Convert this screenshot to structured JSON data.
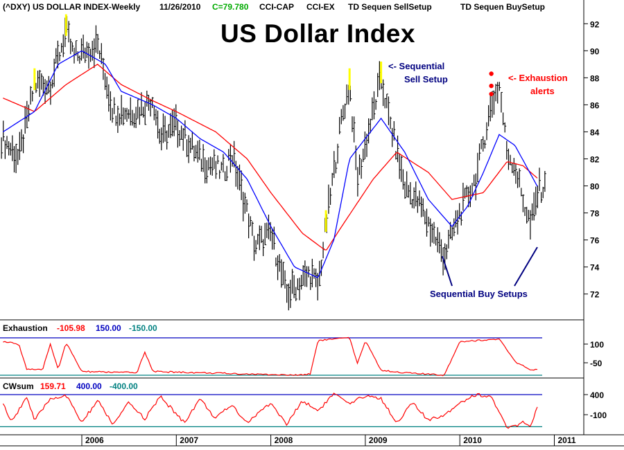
{
  "header": {
    "symbol": "(^DXY) US DOLLAR INDEX-Weekly",
    "date": "11/26/2010",
    "close": "C=79.780",
    "ind1": "CCI-CAP",
    "ind2": "CCI-EX",
    "ind3": "TD Sequen SellSetup",
    "ind4": "TD Sequen BuySetup"
  },
  "colors": {
    "price_bar": "#000000",
    "ma_short": "#0000ff",
    "ma_long": "#ff0000",
    "setup_highlight": "#ffff00",
    "alert_dot": "#ff0000",
    "level_line_upper": "#0000c0",
    "level_line_lower": "#008080",
    "annotation_blue": "#000080",
    "annotation_red": "#ff0000",
    "close_value": "#00aa00"
  },
  "annotations": {
    "title": "US Dollar Index",
    "sell_setup_line1": "<- Sequential",
    "sell_setup_line2": "Sell Setup",
    "exhaustion_line1": "<- Exhaustion",
    "exhaustion_line2": "alerts",
    "buy_setups": "Sequential Buy Setups"
  },
  "panels": {
    "exhaustion": {
      "name": "Exhaustion",
      "value": "-105.98",
      "upper": "150.00",
      "lower": "-150.00"
    },
    "cwsum": {
      "name": "CWsum",
      "value": "159.71",
      "upper": "400.00",
      "lower": "-400.00"
    }
  },
  "chart_data": [
    {
      "type": "ohlc",
      "title": "US Dollar Index",
      "ylim": [
        70.5,
        93.5
      ],
      "y_ticks": [
        "92",
        "90",
        "88",
        "86",
        "84",
        "82",
        "80",
        "78",
        "76",
        "74",
        "72"
      ],
      "x_ticks": [
        "2006",
        "2007",
        "2008",
        "2009",
        "2010",
        "2011"
      ],
      "price_anchors": [
        {
          "date": "2005-03",
          "value": 83.5
        },
        {
          "date": "2005-05",
          "value": 82.0
        },
        {
          "date": "2005-07",
          "value": 87.5
        },
        {
          "date": "2005-09",
          "value": 87.5
        },
        {
          "date": "2005-11",
          "value": 91.5
        },
        {
          "date": "2005-12",
          "value": 89.5
        },
        {
          "date": "2006-03",
          "value": 90.5
        },
        {
          "date": "2006-05",
          "value": 85.5
        },
        {
          "date": "2006-08",
          "value": 85.5
        },
        {
          "date": "2006-10",
          "value": 86.5
        },
        {
          "date": "2006-11",
          "value": 83.5
        },
        {
          "date": "2007-01",
          "value": 84.5
        },
        {
          "date": "2007-04",
          "value": 82.0
        },
        {
          "date": "2007-07",
          "value": 81.0
        },
        {
          "date": "2007-08",
          "value": 82.5
        },
        {
          "date": "2007-10",
          "value": 78.0
        },
        {
          "date": "2007-11",
          "value": 75.5
        },
        {
          "date": "2008-01",
          "value": 76.5
        },
        {
          "date": "2008-03",
          "value": 72.0
        },
        {
          "date": "2008-04",
          "value": 72.5
        },
        {
          "date": "2008-06",
          "value": 73.5
        },
        {
          "date": "2008-07",
          "value": 72.5
        },
        {
          "date": "2008-08",
          "value": 77.0
        },
        {
          "date": "2008-10",
          "value": 85.0
        },
        {
          "date": "2008-11",
          "value": 87.5
        },
        {
          "date": "2008-12",
          "value": 80.5
        },
        {
          "date": "2009-03",
          "value": 88.0
        },
        {
          "date": "2009-04",
          "value": 85.0
        },
        {
          "date": "2009-06",
          "value": 80.0
        },
        {
          "date": "2009-08",
          "value": 78.5
        },
        {
          "date": "2009-10",
          "value": 76.0
        },
        {
          "date": "2009-11",
          "value": 74.8
        },
        {
          "date": "2010-01",
          "value": 78.0
        },
        {
          "date": "2010-03",
          "value": 80.5
        },
        {
          "date": "2010-05",
          "value": 86.0
        },
        {
          "date": "2010-06",
          "value": 87.5
        },
        {
          "date": "2010-07",
          "value": 82.5
        },
        {
          "date": "2010-08",
          "value": 81.5
        },
        {
          "date": "2010-09",
          "value": 79.0
        },
        {
          "date": "2010-10",
          "value": 77.0
        },
        {
          "date": "2010-11",
          "value": 79.8
        }
      ],
      "ma_short": [
        {
          "date": "2005-03",
          "value": 84.0
        },
        {
          "date": "2005-07",
          "value": 85.5
        },
        {
          "date": "2005-10",
          "value": 89.0
        },
        {
          "date": "2006-01",
          "value": 90.0
        },
        {
          "date": "2006-04",
          "value": 89.0
        },
        {
          "date": "2006-06",
          "value": 87.0
        },
        {
          "date": "2006-10",
          "value": 86.0
        },
        {
          "date": "2007-01",
          "value": 85.0
        },
        {
          "date": "2007-04",
          "value": 83.5
        },
        {
          "date": "2007-07",
          "value": 82.5
        },
        {
          "date": "2007-10",
          "value": 80.5
        },
        {
          "date": "2008-01",
          "value": 77.0
        },
        {
          "date": "2008-04",
          "value": 74.0
        },
        {
          "date": "2008-07",
          "value": 73.2
        },
        {
          "date": "2008-09",
          "value": 76.0
        },
        {
          "date": "2008-11",
          "value": 82.0
        },
        {
          "date": "2009-01",
          "value": 83.5
        },
        {
          "date": "2009-03",
          "value": 85.0
        },
        {
          "date": "2009-06",
          "value": 82.5
        },
        {
          "date": "2009-09",
          "value": 79.0
        },
        {
          "date": "2009-12",
          "value": 77.0
        },
        {
          "date": "2010-02",
          "value": 78.5
        },
        {
          "date": "2010-04",
          "value": 81.0
        },
        {
          "date": "2010-06",
          "value": 83.8
        },
        {
          "date": "2010-08",
          "value": 83.0
        },
        {
          "date": "2010-11",
          "value": 79.8
        }
      ],
      "ma_long": [
        {
          "date": "2005-03",
          "value": 86.5
        },
        {
          "date": "2005-07",
          "value": 85.5
        },
        {
          "date": "2005-11",
          "value": 87.5
        },
        {
          "date": "2006-03",
          "value": 89.0
        },
        {
          "date": "2006-06",
          "value": 87.5
        },
        {
          "date": "2006-10",
          "value": 86.3
        },
        {
          "date": "2007-01",
          "value": 85.5
        },
        {
          "date": "2007-06",
          "value": 84.0
        },
        {
          "date": "2007-10",
          "value": 82.0
        },
        {
          "date": "2008-01",
          "value": 79.5
        },
        {
          "date": "2008-05",
          "value": 76.5
        },
        {
          "date": "2008-08",
          "value": 75.2
        },
        {
          "date": "2008-10",
          "value": 77.0
        },
        {
          "date": "2009-02",
          "value": 80.5
        },
        {
          "date": "2009-05",
          "value": 82.5
        },
        {
          "date": "2009-09",
          "value": 81.0
        },
        {
          "date": "2009-12",
          "value": 79.0
        },
        {
          "date": "2010-04",
          "value": 79.5
        },
        {
          "date": "2010-07",
          "value": 81.8
        },
        {
          "date": "2010-09",
          "value": 81.5
        },
        {
          "date": "2010-11",
          "value": 80.5
        }
      ],
      "sell_setups": [
        "2005-07",
        "2005-11",
        "2008-08",
        "2008-11",
        "2009-03"
      ],
      "exhaustion_alerts": [
        {
          "date": "2010-05",
          "value": 88.3
        },
        {
          "date": "2010-05",
          "value": 87.4
        },
        {
          "date": "2010-05",
          "value": 86.8
        }
      ]
    },
    {
      "type": "line",
      "name": "Exhaustion",
      "ylim": [
        -200,
        200
      ],
      "y_ticks": [
        "100",
        "-50"
      ],
      "levels": [
        150,
        -150
      ],
      "values": [
        {
          "date": "2005-03",
          "value": 120
        },
        {
          "date": "2005-05",
          "value": 100
        },
        {
          "date": "2005-06",
          "value": -100
        },
        {
          "date": "2005-08",
          "value": -110
        },
        {
          "date": "2005-09",
          "value": 100
        },
        {
          "date": "2005-10",
          "value": -100
        },
        {
          "date": "2005-11",
          "value": 110
        },
        {
          "date": "2006-01",
          "value": -120
        },
        {
          "date": "2006-08",
          "value": -130
        },
        {
          "date": "2006-09",
          "value": 40
        },
        {
          "date": "2006-10",
          "value": -120
        },
        {
          "date": "2008-04",
          "value": -150
        },
        {
          "date": "2008-06",
          "value": -140
        },
        {
          "date": "2008-07",
          "value": 130
        },
        {
          "date": "2008-11",
          "value": 150
        },
        {
          "date": "2008-12",
          "value": -60
        },
        {
          "date": "2009-01",
          "value": 130
        },
        {
          "date": "2009-03",
          "value": -110
        },
        {
          "date": "2009-06",
          "value": -130
        },
        {
          "date": "2009-11",
          "value": -150
        },
        {
          "date": "2010-01",
          "value": 120
        },
        {
          "date": "2010-06",
          "value": 140
        },
        {
          "date": "2010-08",
          "value": -40
        },
        {
          "date": "2010-10",
          "value": -110
        },
        {
          "date": "2010-11",
          "value": -106
        }
      ]
    },
    {
      "type": "line",
      "name": "CWsum",
      "ylim": [
        -550,
        550
      ],
      "y_ticks": [
        "400",
        "-100"
      ],
      "levels": [
        400,
        -400
      ],
      "values": [
        {
          "date": "2005-03",
          "value": 200
        },
        {
          "date": "2005-04",
          "value": -300
        },
        {
          "date": "2005-06",
          "value": 350
        },
        {
          "date": "2005-07",
          "value": -250
        },
        {
          "date": "2005-09",
          "value": 300
        },
        {
          "date": "2005-11",
          "value": 380
        },
        {
          "date": "2006-01",
          "value": -300
        },
        {
          "date": "2006-03",
          "value": 250
        },
        {
          "date": "2006-05",
          "value": -350
        },
        {
          "date": "2006-07",
          "value": 200
        },
        {
          "date": "2006-09",
          "value": -200
        },
        {
          "date": "2006-11",
          "value": 350
        },
        {
          "date": "2007-02",
          "value": -300
        },
        {
          "date": "2007-04",
          "value": 300
        },
        {
          "date": "2007-06",
          "value": -200
        },
        {
          "date": "2007-08",
          "value": 150
        },
        {
          "date": "2007-10",
          "value": -300
        },
        {
          "date": "2008-01",
          "value": 200
        },
        {
          "date": "2008-03",
          "value": -350
        },
        {
          "date": "2008-05",
          "value": 250
        },
        {
          "date": "2008-07",
          "value": 0
        },
        {
          "date": "2008-09",
          "value": 420
        },
        {
          "date": "2008-11",
          "value": 150
        },
        {
          "date": "2009-01",
          "value": 380
        },
        {
          "date": "2009-03",
          "value": 300
        },
        {
          "date": "2009-05",
          "value": -300
        },
        {
          "date": "2009-07",
          "value": 200
        },
        {
          "date": "2009-09",
          "value": -250
        },
        {
          "date": "2009-11",
          "value": -100
        },
        {
          "date": "2010-01",
          "value": 200
        },
        {
          "date": "2010-03",
          "value": 400
        },
        {
          "date": "2010-05",
          "value": 350
        },
        {
          "date": "2010-07",
          "value": -450
        },
        {
          "date": "2010-09",
          "value": -300
        },
        {
          "date": "2010-10",
          "value": -400
        },
        {
          "date": "2010-11",
          "value": 160
        }
      ]
    }
  ]
}
